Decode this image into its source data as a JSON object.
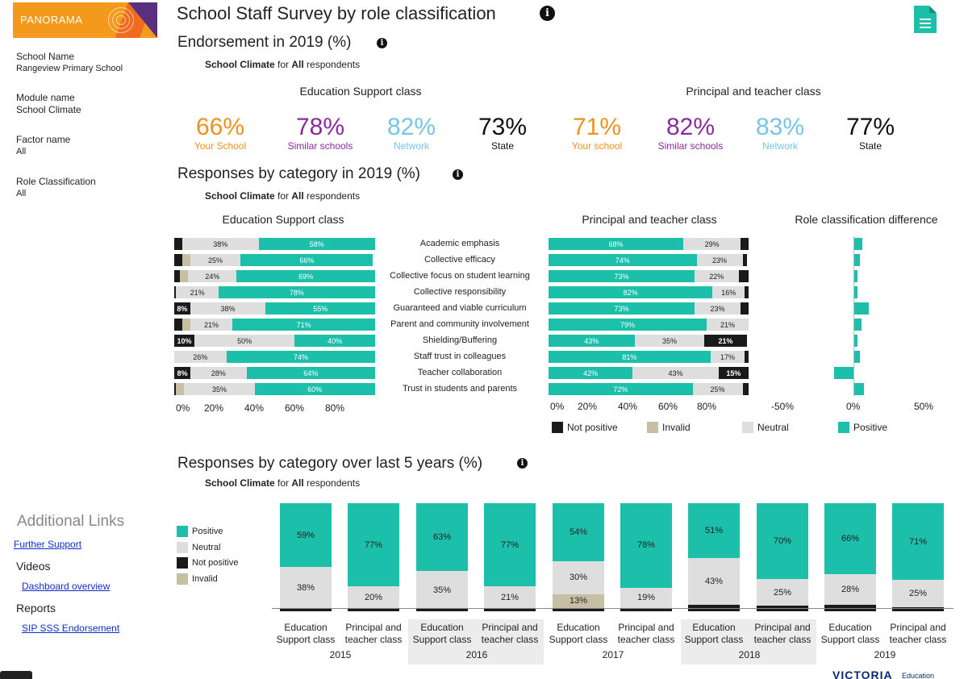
{
  "logo": {
    "text": "PANORAMA"
  },
  "filters": [
    {
      "label": "School Name",
      "value": "Rangeview Primary School"
    },
    {
      "label": "Module name",
      "value": "School Climate"
    },
    {
      "label": "Factor name",
      "value": "All"
    },
    {
      "label": "Role Classification",
      "value": "All"
    }
  ],
  "links": {
    "title": "Additional Links",
    "further_support": "Further Support",
    "videos_heading": "Videos",
    "dashboard_overview": "Dashboard overview",
    "reports_heading": "Reports",
    "sip_sss": "SIP SSS Endorsement"
  },
  "page_title": "School Staff Survey by role classification",
  "subtitle_prefix": "School Climate",
  "subtitle_mid": " for ",
  "subtitle_all": "All",
  "subtitle_suffix": " respondents",
  "endorsement": {
    "heading": "Endorsement in 2019 (%)",
    "groups": [
      {
        "title": "Education Support class",
        "stats": [
          {
            "value": "66%",
            "label": "Your School",
            "kind": "school"
          },
          {
            "value": "78%",
            "label": "Similar schools",
            "kind": "similar"
          },
          {
            "value": "82%",
            "label": "Network",
            "kind": "network"
          },
          {
            "value": "73%",
            "label": "State",
            "kind": "state"
          }
        ]
      },
      {
        "title": "Principal and teacher class",
        "stats": [
          {
            "value": "71%",
            "label": "Your school",
            "kind": "school"
          },
          {
            "value": "82%",
            "label": "Similar schools",
            "kind": "similar"
          },
          {
            "value": "83%",
            "label": "Network",
            "kind": "network"
          },
          {
            "value": "77%",
            "label": "State",
            "kind": "state"
          }
        ]
      }
    ]
  },
  "responses": {
    "heading": "Responses by category in 2019 (%)",
    "left_title": "Education Support class",
    "right_title": "Principal and teacher class",
    "diff_title": "Role classification difference",
    "categories": [
      "Academic emphasis",
      "Collective efficacy",
      "Collective focus on student learning",
      "Collective responsibility",
      "Guaranteed and viable curriculum",
      "Parent and community involvement",
      "Shielding/Buffering",
      "Staff trust in colleagues",
      "Teacher collaboration",
      "Trust in students and parents"
    ],
    "es": [
      {
        "np": 4,
        "inv": 0,
        "neu": 38,
        "pos": 58,
        "np_l": "",
        "neu_l": "38%",
        "pos_l": "58%"
      },
      {
        "np": 4,
        "inv": 4,
        "neu": 25,
        "pos": 66,
        "np_l": "",
        "neu_l": "25%",
        "pos_l": "66%"
      },
      {
        "np": 3,
        "inv": 4,
        "neu": 24,
        "pos": 69,
        "np_l": "",
        "neu_l": "24%",
        "pos_l": "69%"
      },
      {
        "np": 1,
        "inv": 0,
        "neu": 21,
        "pos": 78,
        "np_l": "",
        "neu_l": "21%",
        "pos_l": "78%"
      },
      {
        "np": 8,
        "inv": 0,
        "neu": 38,
        "pos": 55,
        "np_l": "8%",
        "neu_l": "38%",
        "pos_l": "55%"
      },
      {
        "np": 4,
        "inv": 4,
        "neu": 21,
        "pos": 71,
        "np_l": "",
        "neu_l": "21%",
        "pos_l": "71%"
      },
      {
        "np": 10,
        "inv": 0,
        "neu": 50,
        "pos": 40,
        "np_l": "10%",
        "neu_l": "50%",
        "pos_l": "40%"
      },
      {
        "np": 0,
        "inv": 0,
        "neu": 26,
        "pos": 74,
        "np_l": "",
        "neu_l": "26%",
        "pos_l": "74%"
      },
      {
        "np": 8,
        "inv": 0,
        "neu": 28,
        "pos": 64,
        "np_l": "8%",
        "neu_l": "28%",
        "pos_l": "64%"
      },
      {
        "np": 1,
        "inv": 4,
        "neu": 35,
        "pos": 60,
        "np_l": "",
        "neu_l": "35%",
        "pos_l": "60%"
      }
    ],
    "pt": [
      {
        "pos": 68,
        "neu": 29,
        "inv": 0,
        "np": 4,
        "pos_l": "68%",
        "neu_l": "29%",
        "np_l": ""
      },
      {
        "pos": 74,
        "neu": 23,
        "inv": 0,
        "np": 2,
        "pos_l": "74%",
        "neu_l": "23%",
        "np_l": ""
      },
      {
        "pos": 73,
        "neu": 22,
        "inv": 0,
        "np": 5,
        "pos_l": "73%",
        "neu_l": "22%",
        "np_l": ""
      },
      {
        "pos": 82,
        "neu": 16,
        "inv": 0,
        "np": 2,
        "pos_l": "82%",
        "neu_l": "16%",
        "np_l": ""
      },
      {
        "pos": 73,
        "neu": 23,
        "inv": 0,
        "np": 4,
        "pos_l": "73%",
        "neu_l": "23%",
        "np_l": ""
      },
      {
        "pos": 79,
        "neu": 21,
        "inv": 0,
        "np": 0,
        "pos_l": "79%",
        "neu_l": "21%",
        "np_l": ""
      },
      {
        "pos": 43,
        "neu": 35,
        "inv": 0,
        "np": 21,
        "pos_l": "43%",
        "neu_l": "35%",
        "np_l": "21%"
      },
      {
        "pos": 81,
        "neu": 17,
        "inv": 0,
        "np": 2,
        "pos_l": "81%",
        "neu_l": "17%",
        "np_l": ""
      },
      {
        "pos": 42,
        "neu": 43,
        "inv": 0,
        "np": 15,
        "pos_l": "42%",
        "neu_l": "43%",
        "np_l": "15%"
      },
      {
        "pos": 72,
        "neu": 25,
        "inv": 0,
        "np": 3,
        "pos_l": "72%",
        "neu_l": "25%",
        "np_l": ""
      }
    ],
    "diff": [
      7,
      5,
      3,
      3,
      12,
      6,
      3,
      5,
      -15,
      8
    ],
    "left_axis": [
      "0%",
      "20%",
      "40%",
      "60%",
      "80%"
    ],
    "right_axis": [
      "0%",
      "20%",
      "40%",
      "60%",
      "80%"
    ],
    "diff_axis": [
      "-50%",
      "0%",
      "50%"
    ],
    "legend": [
      "Not positive",
      "Invalid",
      "Neutral",
      "Positive"
    ]
  },
  "five_years": {
    "heading": "Responses by category over last 5 years (%)",
    "legend": [
      "Positive",
      "Neutral",
      "Not positive",
      "Invalid"
    ],
    "class_labels": [
      "Education Support class",
      "Principal and teacher class"
    ],
    "years": [
      "2015",
      "2016",
      "2017",
      "2018",
      "2019"
    ],
    "columns": [
      {
        "pos": 59,
        "neu": 38,
        "inv": 0,
        "np": 3,
        "pos_l": "59%",
        "neu_l": "38%",
        "inv_l": ""
      },
      {
        "pos": 77,
        "neu": 20,
        "inv": 0,
        "np": 3,
        "pos_l": "77%",
        "neu_l": "20%",
        "inv_l": ""
      },
      {
        "pos": 63,
        "neu": 35,
        "inv": 0,
        "np": 2,
        "pos_l": "63%",
        "neu_l": "35%",
        "inv_l": ""
      },
      {
        "pos": 77,
        "neu": 21,
        "inv": 0,
        "np": 2,
        "pos_l": "77%",
        "neu_l": "21%",
        "inv_l": ""
      },
      {
        "pos": 54,
        "neu": 30,
        "inv": 13,
        "np": 3,
        "pos_l": "54%",
        "neu_l": "30%",
        "inv_l": "13%"
      },
      {
        "pos": 78,
        "neu": 19,
        "inv": 0,
        "np": 3,
        "pos_l": "78%",
        "neu_l": "19%",
        "inv_l": ""
      },
      {
        "pos": 51,
        "neu": 43,
        "inv": 0,
        "np": 6,
        "pos_l": "51%",
        "neu_l": "43%",
        "inv_l": ""
      },
      {
        "pos": 70,
        "neu": 25,
        "inv": 0,
        "np": 5,
        "pos_l": "70%",
        "neu_l": "25%",
        "inv_l": ""
      },
      {
        "pos": 66,
        "neu": 28,
        "inv": 0,
        "np": 6,
        "pos_l": "66%",
        "neu_l": "28%",
        "inv_l": ""
      },
      {
        "pos": 71,
        "neu": 25,
        "inv": 0,
        "np": 4,
        "pos_l": "71%",
        "neu_l": "25%",
        "inv_l": ""
      }
    ]
  },
  "footer": {
    "brand": "VICTORIA",
    "edu": "Education"
  },
  "colors": {
    "positive": "#1cbfaa",
    "neutral": "#dedede",
    "not_positive": "#1a1a1a",
    "invalid": "#c6bfa3",
    "accent": "#f39a1d"
  }
}
